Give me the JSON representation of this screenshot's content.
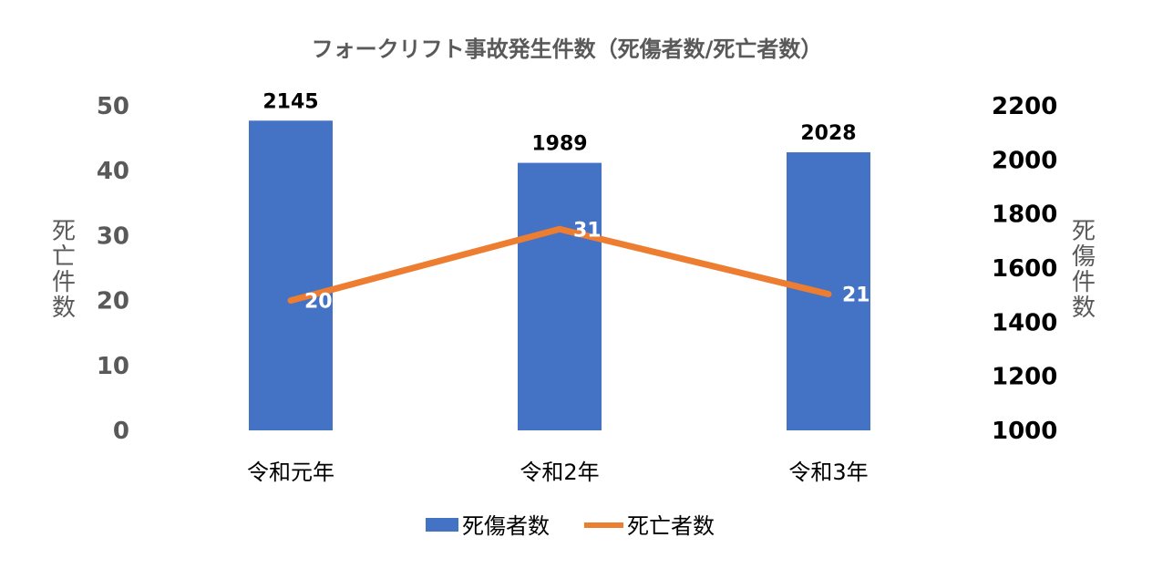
{
  "chart_data": {
    "type": "bar",
    "title": "フォークリフト事故発生件数（死傷者数/死亡者数）",
    "categories": [
      "令和元年",
      "令和2年",
      "令和3年"
    ],
    "series": [
      {
        "name": "死傷者数",
        "type": "bar",
        "axis": "right",
        "values": [
          2145,
          1989,
          2028
        ],
        "color": "#4472C4"
      },
      {
        "name": "死亡者数",
        "type": "line",
        "axis": "left",
        "values": [
          20,
          31,
          21
        ],
        "color": "#ED7D31"
      }
    ],
    "y_left": {
      "label": "死亡件数",
      "range": [
        0,
        50
      ],
      "ticks": [
        "0",
        "10",
        "20",
        "30",
        "40",
        "50"
      ]
    },
    "y_right": {
      "label": "死傷件数",
      "range": [
        1000,
        2200
      ],
      "ticks": [
        "1000",
        "1200",
        "1400",
        "1600",
        "1800",
        "2000",
        "2200"
      ]
    },
    "grid": false,
    "legend": "bottom"
  }
}
